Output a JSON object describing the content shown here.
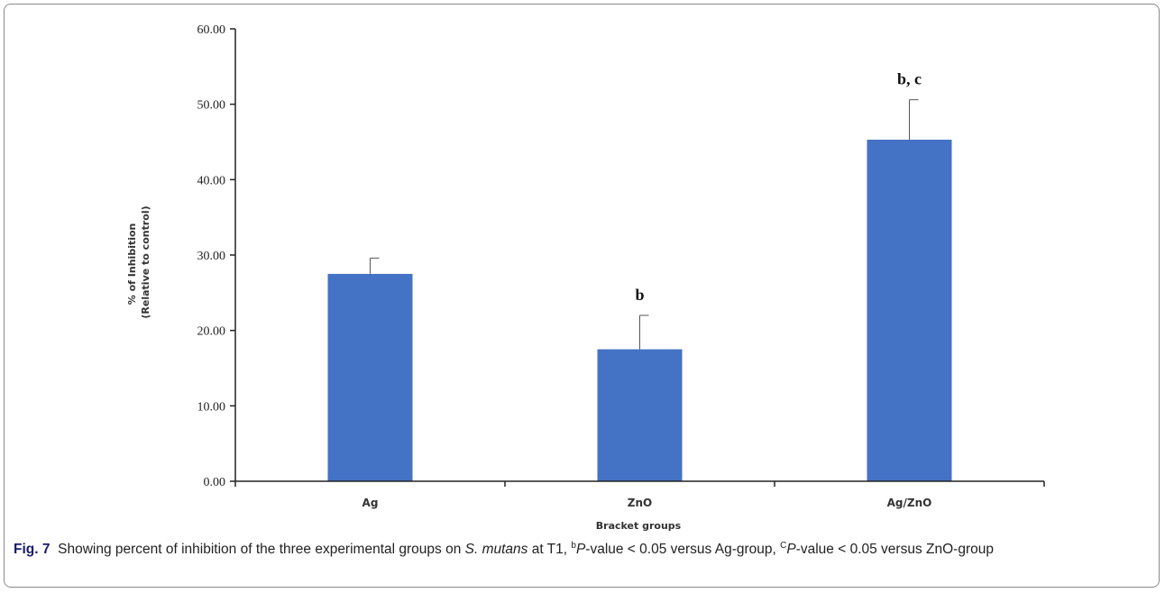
{
  "chart_data": {
    "type": "bar",
    "categories": [
      "Ag",
      "ZnO",
      "Ag/ZnO"
    ],
    "values": [
      27.5,
      17.5,
      45.3
    ],
    "error_upper": [
      29.6,
      22.0,
      50.6
    ],
    "significance_labels": [
      "",
      "b",
      "b, c"
    ],
    "ylabel_line1": "% of Inhibition",
    "ylabel_line2": "(Relative to control)",
    "xlabel": "Bracket groups",
    "ylim": [
      0,
      60
    ],
    "yticks": [
      0,
      10,
      20,
      30,
      40,
      50,
      60
    ],
    "ytick_labels": [
      "0.00",
      "10.00",
      "20.00",
      "30.00",
      "40.00",
      "50.00",
      "60.00"
    ],
    "bar_color": "#4472c4",
    "grid": false,
    "legend": "none"
  },
  "caption": {
    "fig_label": "Fig. 7",
    "text_1": "Showing percent of inhibition of the three experimental groups on ",
    "organism": "S. mutans",
    "text_2": " at T1, ",
    "sup_b": "b",
    "p_1": "P",
    "text_3": "-value < 0.05 versus Ag-group, ",
    "sup_c": "C",
    "p_2": "P",
    "text_4": "-value < 0.05 versus ZnO-group"
  }
}
